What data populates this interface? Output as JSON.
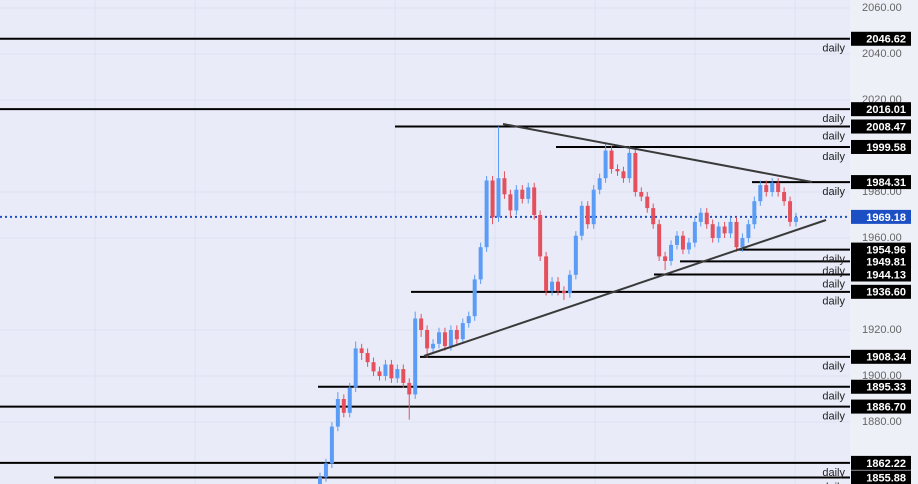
{
  "chart_data": {
    "type": "candlestick",
    "ylim": [
      1853.04,
      2063.48
    ],
    "yticks": [
      {
        "value": 2060,
        "label": "2060.00"
      },
      {
        "value": 2040,
        "label": "2040.00"
      },
      {
        "value": 2020,
        "label": "2020.00"
      },
      {
        "value": 1980,
        "label": "1980.00"
      },
      {
        "value": 1960,
        "label": "1960.00"
      },
      {
        "value": 1920,
        "label": "1920.00"
      },
      {
        "value": 1900,
        "label": "1900.00"
      },
      {
        "value": 1880,
        "label": "1880.00"
      }
    ],
    "grid": true,
    "up_color": "#5b9cf6",
    "down_color": "#e5505f",
    "open": [
      1852,
      1856,
      1862,
      1878,
      1890,
      1884,
      1895,
      1912,
      1910,
      1906,
      1902,
      1900,
      1905,
      1899,
      1903,
      1897,
      1892,
      1925,
      1920,
      1912,
      1914,
      1919,
      1913,
      1920,
      1916,
      1923,
      1926,
      1942,
      1956,
      1985,
      1969,
      1986,
      1979,
      1972,
      1981,
      1977,
      1982,
      1970,
      1952,
      1937,
      1941,
      1937,
      1936,
      1944,
      1961,
      1974,
      1966,
      1981,
      1986,
      1998,
      1990,
      1989,
      1986,
      1997,
      1980,
      1978,
      1973,
      1966,
      1952,
      1950,
      1957,
      1961,
      1955,
      1958,
      1967,
      1971,
      1966,
      1960,
      1965,
      1962,
      1967,
      1956,
      1960,
      1966,
      1976,
      1983,
      1980,
      1984,
      1980,
      1976,
      1967
    ],
    "high": [
      1858,
      1864,
      1880,
      1893,
      1892,
      1897,
      1915,
      1914,
      1912,
      1908,
      1904,
      1907,
      1907,
      1905,
      1905,
      1899,
      1928,
      1927,
      1922,
      1916,
      1921,
      1921,
      1922,
      1922,
      1925,
      1928,
      1944,
      1958,
      1987,
      1987,
      2008.47,
      1989,
      1981,
      1983,
      1983,
      1984,
      1984,
      1972,
      1954,
      1943,
      1943,
      1939,
      1946,
      1963,
      1976,
      1976,
      1983,
      1988,
      2001,
      2000,
      1992,
      1991,
      2000,
      1999,
      1982,
      1980,
      1975,
      1968,
      1954,
      1959,
      1963,
      1963,
      1960,
      1969,
      1973,
      1973,
      1968,
      1967,
      1967,
      1969,
      1969,
      1962,
      1968,
      1978,
      1985,
      1985,
      1986,
      1986,
      1982,
      1978,
      1971
    ],
    "low": [
      1850,
      1854,
      1860,
      1876,
      1882,
      1882,
      1893,
      1907,
      1904,
      1900,
      1898,
      1898,
      1897,
      1897,
      1895,
      1881,
      1890,
      1917,
      1908,
      1910,
      1912,
      1911,
      1911,
      1914,
      1914,
      1921,
      1924,
      1940,
      1954,
      1966,
      1967,
      1977,
      1969,
      1970,
      1975,
      1975,
      1968,
      1950,
      1935,
      1935,
      1935,
      1933,
      1934,
      1942,
      1959,
      1964,
      1964,
      1979,
      1984,
      1988,
      1987,
      1984,
      1984,
      1978,
      1976,
      1971,
      1964,
      1950,
      1946,
      1948,
      1955,
      1953,
      1953,
      1956,
      1965,
      1964,
      1958,
      1958,
      1960,
      1960,
      1954,
      1954,
      1958,
      1964,
      1974,
      1978,
      1978,
      1978,
      1974,
      1965,
      1965
    ],
    "close": [
      1856,
      1862,
      1878,
      1890,
      1884,
      1895,
      1912,
      1910,
      1906,
      1902,
      1900,
      1905,
      1899,
      1903,
      1897,
      1892,
      1925,
      1920,
      1912,
      1914,
      1919,
      1913,
      1920,
      1916,
      1923,
      1926,
      1942,
      1956,
      1985,
      1969,
      1986,
      1979,
      1972,
      1981,
      1977,
      1982,
      1970,
      1952,
      1937,
      1941,
      1937,
      1936,
      1944,
      1961,
      1974,
      1966,
      1981,
      1986,
      1998,
      1990,
      1989,
      1986,
      1997,
      1980,
      1978,
      1973,
      1966,
      1952,
      1950,
      1957,
      1961,
      1955,
      1958,
      1967,
      1971,
      1966,
      1960,
      1965,
      1962,
      1967,
      1956,
      1960,
      1966,
      1976,
      1983,
      1980,
      1984,
      1980,
      1976,
      1967,
      1969
    ],
    "level_note": "daily",
    "levels": [
      {
        "value": 2046.62,
        "label": "2046.62"
      },
      {
        "value": 2016.01,
        "label": "2016.01"
      },
      {
        "value": 2008.47,
        "label": "2008.47"
      },
      {
        "value": 1999.58,
        "label": "1999.58"
      },
      {
        "value": 1984.31,
        "label": "1984.31"
      },
      {
        "value": 1954.96,
        "label": "1954.96"
      },
      {
        "value": 1949.81,
        "label": "1949.81"
      },
      {
        "value": 1944.13,
        "label": "1944.13"
      },
      {
        "value": 1936.6,
        "label": "1936.60"
      },
      {
        "value": 1908.34,
        "label": "1908.34"
      },
      {
        "value": 1895.33,
        "label": "1895.33"
      },
      {
        "value": 1886.7,
        "label": "1886.70"
      },
      {
        "value": 1862.22,
        "label": "1862.22"
      },
      {
        "value": 1855.88,
        "label": "1855.88"
      }
    ],
    "current_price": {
      "value": 1969.18,
      "label": "1969.18",
      "color": "#1d4fc4"
    }
  }
}
